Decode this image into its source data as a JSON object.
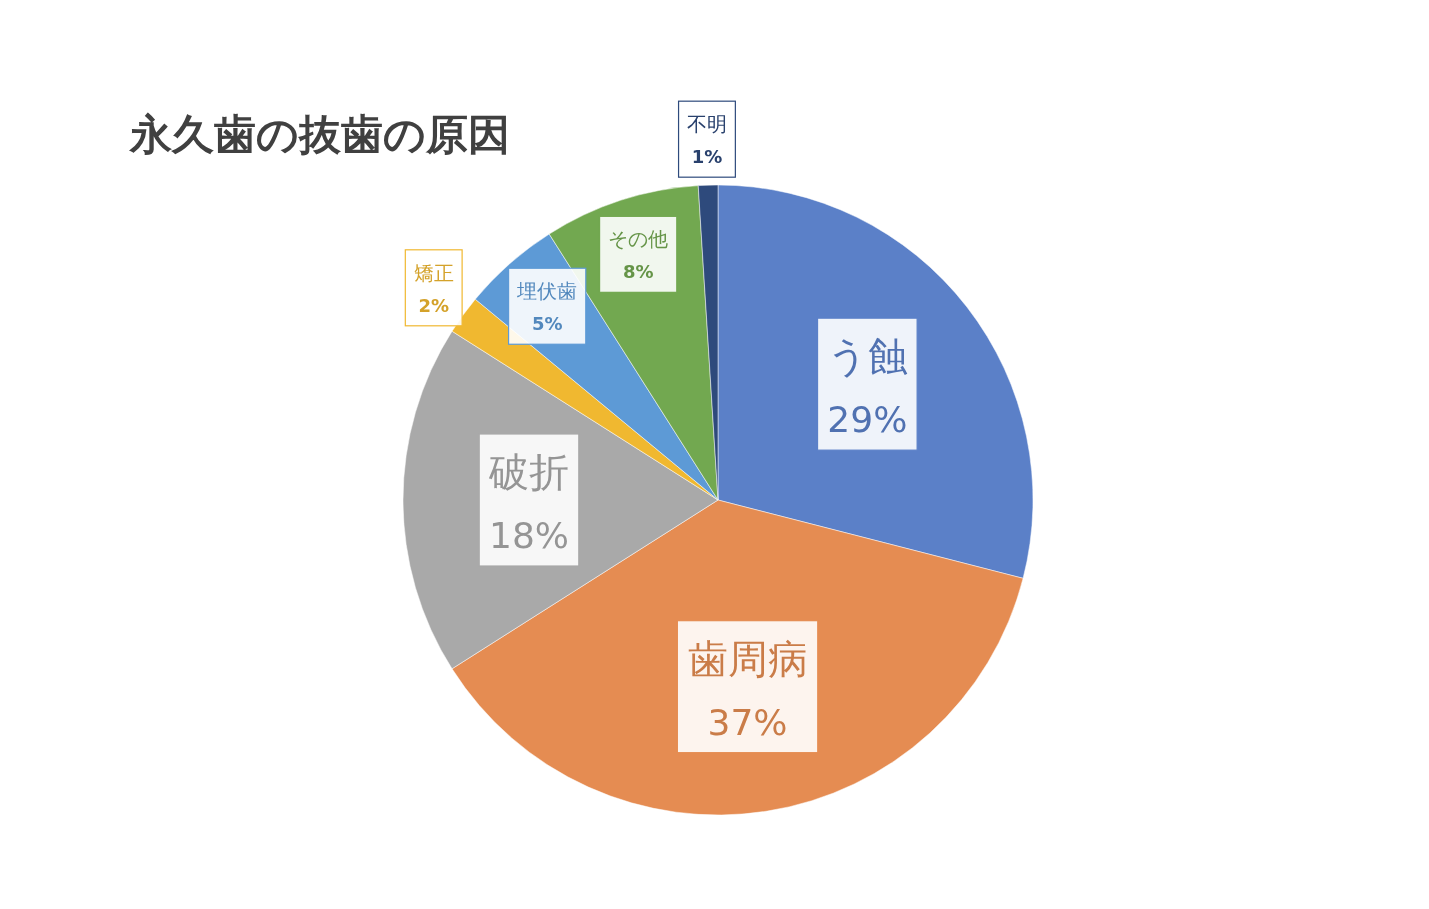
{
  "chart_data": {
    "type": "pie",
    "title": "永久歯の抜歯の原因",
    "categories": [
      "う蝕",
      "歯周病",
      "破折",
      "矯正",
      "埋伏歯",
      "その他",
      "不明"
    ],
    "values": [
      29,
      37,
      18,
      2,
      5,
      8,
      1
    ],
    "colors": [
      "#5b80c8",
      "#e58c52",
      "#a9a9a9",
      "#f0b830",
      "#5d9ad6",
      "#72a850",
      "#2e4a7c"
    ],
    "value_labels": [
      "29%",
      "37%",
      "18%",
      "2%",
      "5%",
      "8%",
      "1%"
    ]
  }
}
